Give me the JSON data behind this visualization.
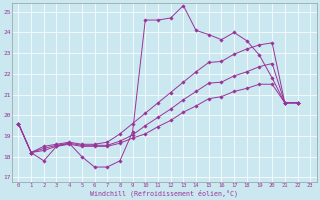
{
  "xlabel": "Windchill (Refroidissement éolien,°C)",
  "bg_color": "#cbe8f0",
  "line_color": "#993399",
  "xlim": [
    -0.5,
    23.5
  ],
  "ylim": [
    16.8,
    25.4
  ],
  "yticks": [
    17,
    18,
    19,
    20,
    21,
    22,
    23,
    24,
    25
  ],
  "xticks": [
    0,
    1,
    2,
    3,
    4,
    5,
    6,
    7,
    8,
    9,
    10,
    11,
    12,
    13,
    14,
    15,
    16,
    17,
    18,
    19,
    20,
    21,
    22,
    23
  ],
  "figsize": [
    3.2,
    2.0
  ],
  "dpi": 100,
  "series": [
    [
      19.6,
      18.2,
      17.8,
      18.5,
      18.65,
      18.0,
      17.5,
      17.5,
      17.8,
      19.2,
      24.6,
      24.6,
      24.7,
      25.3,
      24.1,
      23.9,
      23.65,
      24.0,
      23.6,
      22.9,
      21.8,
      20.6,
      20.6
    ],
    [
      19.6,
      18.2,
      18.5,
      18.6,
      18.7,
      18.6,
      18.6,
      18.7,
      19.1,
      19.6,
      20.1,
      20.6,
      21.1,
      21.6,
      22.1,
      22.55,
      22.6,
      22.95,
      23.2,
      23.4,
      23.5,
      20.6,
      20.6
    ],
    [
      19.6,
      18.2,
      18.4,
      18.55,
      18.65,
      18.55,
      18.55,
      18.55,
      18.75,
      19.05,
      19.5,
      19.9,
      20.3,
      20.75,
      21.15,
      21.55,
      21.6,
      21.9,
      22.1,
      22.35,
      22.5,
      20.6,
      20.6
    ],
    [
      19.6,
      18.2,
      18.3,
      18.5,
      18.6,
      18.5,
      18.5,
      18.5,
      18.65,
      18.9,
      19.1,
      19.45,
      19.75,
      20.15,
      20.45,
      20.8,
      20.9,
      21.15,
      21.3,
      21.5,
      21.5,
      20.6,
      20.6
    ]
  ]
}
